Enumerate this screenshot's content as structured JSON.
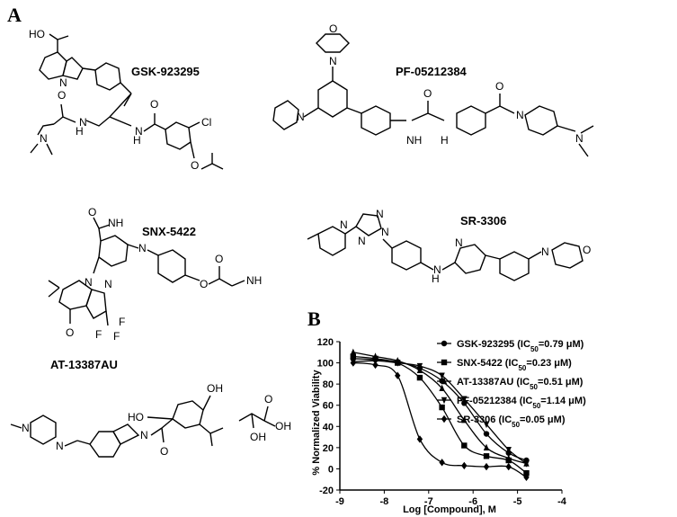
{
  "panels": {
    "a": "A",
    "b": "B"
  },
  "compounds": {
    "gsk": "GSK-923295",
    "pf": "PF-05212384",
    "snx": "SNX-5422",
    "sr": "SR-3306",
    "at": "AT-13387AU"
  },
  "atoms": {
    "ho": "HO",
    "oh": "OH",
    "o": "O",
    "n": "N",
    "nh": "NH",
    "h": "H",
    "cl": "Cl",
    "nh2": "NH",
    "f": "F"
  },
  "chart_data": {
    "type": "scatter",
    "title": "",
    "xlabel": "Log [Compound], M",
    "ylabel": "% Normalized Viability",
    "xlim": [
      -9,
      -4
    ],
    "ylim": [
      -20,
      120
    ],
    "xticks": [
      "-9",
      "-8",
      "-7",
      "-6",
      "-5",
      "-4"
    ],
    "yticks": [
      "-20",
      "0",
      "20",
      "40",
      "60",
      "80",
      "100",
      "120"
    ],
    "legend_position": "right",
    "series": [
      {
        "name": "GSK-923295 (IC50=0.79 μM)",
        "label_prefix": "GSK-923295 (IC",
        "label_sub": "50",
        "label_suffix": "=0.79 μM)",
        "marker": "circle",
        "x": [
          -8.7,
          -8.2,
          -7.7,
          -7.2,
          -6.7,
          -6.2,
          -5.7,
          -5.2,
          -4.8
        ],
        "y": [
          104,
          103,
          101,
          95,
          83,
          62,
          33,
          15,
          8
        ]
      },
      {
        "name": "SNX-5422 (IC50=0.23 μM)",
        "label_prefix": "SNX-5422 (IC",
        "label_sub": "50",
        "label_suffix": "=0.23 μM)",
        "marker": "square",
        "x": [
          -8.7,
          -8.2,
          -7.7,
          -7.2,
          -6.7,
          -6.2,
          -5.7,
          -5.2,
          -4.8
        ],
        "y": [
          106,
          104,
          100,
          86,
          58,
          22,
          12,
          8,
          -4
        ]
      },
      {
        "name": "AT-13387AU (IC50=0.51 μM)",
        "label_prefix": "AT-13387AU (IC",
        "label_sub": "50",
        "label_suffix": "=0.51 μM)",
        "marker": "triangle",
        "x": [
          -8.7,
          -8.2,
          -7.7,
          -7.2,
          -6.7,
          -6.2,
          -5.7,
          -5.2,
          -4.8
        ],
        "y": [
          110,
          106,
          102,
          93,
          76,
          46,
          20,
          10,
          5
        ]
      },
      {
        "name": "PF-05212384 (IC50=1.14 μM)",
        "label_prefix": "PF-05212384 (IC",
        "label_sub": "50",
        "label_suffix": "=1.14 μM)",
        "marker": "triangle-down",
        "x": [
          -8.7,
          -8.2,
          -7.7,
          -7.2,
          -6.7,
          -6.2,
          -5.7,
          -5.2,
          -4.8
        ],
        "y": [
          101,
          102,
          100,
          97,
          88,
          66,
          42,
          18,
          5
        ]
      },
      {
        "name": "SR-3306 (IC50=0.05 μM)",
        "label_prefix": "SR-3306 (IC",
        "label_sub": "50",
        "label_suffix": "=0.05 μM)",
        "marker": "diamond",
        "x": [
          -8.7,
          -8.2,
          -7.7,
          -7.2,
          -6.7,
          -6.2,
          -5.7,
          -5.2,
          -4.8
        ],
        "y": [
          100,
          98,
          88,
          28,
          6,
          3,
          2,
          2,
          -8
        ]
      }
    ]
  }
}
